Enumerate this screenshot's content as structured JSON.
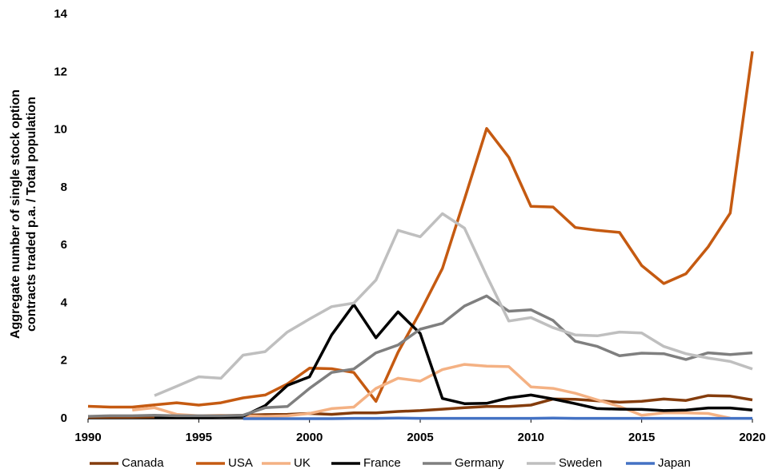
{
  "chart_data": {
    "type": "line",
    "ylabel": [
      "Aggregate number of single stock option",
      "contracts traded p.a. / Total population"
    ],
    "x": [
      1990,
      1991,
      1992,
      1993,
      1994,
      1995,
      1996,
      1997,
      1998,
      1999,
      2000,
      2001,
      2002,
      2003,
      2004,
      2005,
      2006,
      2007,
      2008,
      2009,
      2010,
      2011,
      2012,
      2013,
      2014,
      2015,
      2016,
      2017,
      2018,
      2019,
      2020
    ],
    "xlim": [
      1990,
      2020
    ],
    "xticks": [
      1990,
      1995,
      2000,
      2005,
      2010,
      2015,
      2020
    ],
    "ylim": [
      0,
      14
    ],
    "yticks": [
      0,
      2,
      4,
      6,
      8,
      10,
      12,
      14
    ],
    "grid": false,
    "legend": "bottom",
    "series": [
      {
        "name": "Canada",
        "color": "#843c0c",
        "values": [
          0.05,
          0.05,
          0.05,
          0.06,
          0.08,
          0.08,
          0.1,
          0.12,
          0.14,
          0.15,
          0.18,
          0.15,
          0.2,
          0.2,
          0.25,
          0.28,
          0.33,
          0.38,
          0.42,
          0.42,
          0.47,
          0.68,
          0.67,
          0.62,
          0.57,
          0.6,
          0.68,
          0.63,
          0.8,
          0.78,
          0.65
        ]
      },
      {
        "name": "USA",
        "color": "#c55a11",
        "values": [
          0.43,
          0.4,
          0.4,
          0.48,
          0.55,
          0.47,
          0.55,
          0.72,
          0.82,
          1.2,
          1.75,
          1.73,
          1.6,
          0.6,
          2.3,
          3.7,
          5.2,
          7.6,
          10.05,
          9.05,
          7.35,
          7.33,
          6.62,
          6.52,
          6.45,
          5.3,
          4.68,
          5.02,
          5.95,
          7.12,
          12.72
        ]
      },
      {
        "name": "UK",
        "color": "#f4b183",
        "values": [
          null,
          null,
          0.3,
          0.38,
          0.15,
          0.1,
          0.12,
          0.1,
          0.08,
          0.1,
          0.18,
          0.35,
          0.4,
          1.05,
          1.4,
          1.3,
          1.7,
          1.88,
          1.82,
          1.8,
          1.1,
          1.05,
          0.88,
          0.65,
          0.42,
          0.12,
          0.2,
          0.2,
          0.18,
          0.02,
          null
        ]
      },
      {
        "name": "France",
        "color": "#000000",
        "values": [
          null,
          null,
          null,
          0.05,
          0.05,
          0.05,
          0.07,
          0.08,
          0.45,
          1.15,
          1.45,
          2.9,
          3.95,
          2.8,
          3.7,
          2.95,
          0.7,
          0.52,
          0.53,
          0.72,
          0.82,
          0.68,
          0.52,
          0.35,
          0.33,
          0.32,
          0.28,
          0.3,
          0.37,
          0.37,
          0.3
        ]
      },
      {
        "name": "Germany",
        "color": "#7f7f7f",
        "values": [
          0.08,
          0.1,
          0.1,
          0.12,
          0.1,
          0.1,
          0.1,
          0.12,
          0.38,
          0.42,
          1.05,
          1.6,
          1.72,
          2.28,
          2.55,
          3.1,
          3.3,
          3.9,
          4.25,
          3.72,
          3.77,
          3.4,
          2.68,
          2.5,
          2.18,
          2.27,
          2.25,
          2.05,
          2.28,
          2.22,
          2.28
        ]
      },
      {
        "name": "Sweden",
        "color": "#bfbfbf",
        "values": [
          null,
          null,
          null,
          0.8,
          1.12,
          1.45,
          1.4,
          2.2,
          2.32,
          3.0,
          3.45,
          3.88,
          4.0,
          4.8,
          6.52,
          6.3,
          7.1,
          6.6,
          4.95,
          3.38,
          3.5,
          3.15,
          2.9,
          2.87,
          3.0,
          2.97,
          2.5,
          2.25,
          2.1,
          1.98,
          1.72
        ]
      },
      {
        "name": "Japan",
        "color": "#4472c4",
        "values": [
          null,
          null,
          null,
          null,
          null,
          null,
          null,
          0.0,
          0.0,
          0.0,
          0.0,
          0.0,
          0.01,
          0.01,
          0.02,
          0.01,
          0.01,
          0.01,
          0.01,
          0.01,
          0.01,
          0.02,
          0.01,
          0.01,
          0.01,
          0.01,
          0.01,
          0.01,
          0.01,
          0.01,
          0.01
        ]
      }
    ]
  }
}
